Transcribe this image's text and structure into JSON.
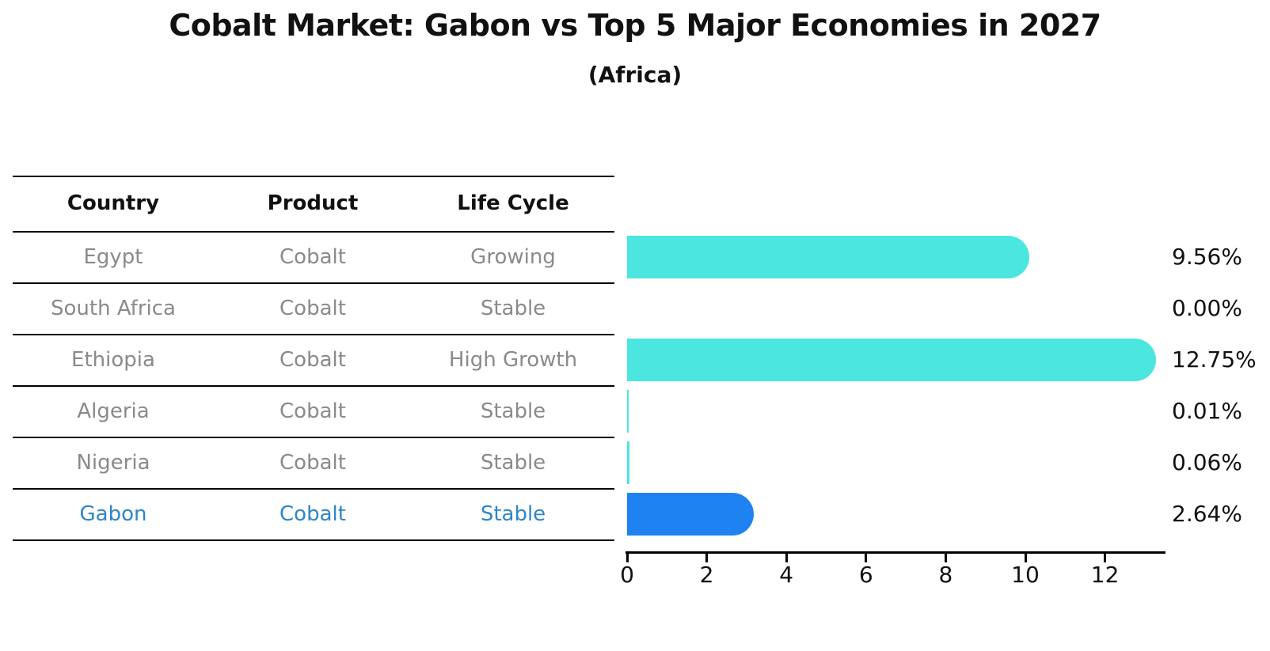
{
  "title": "Cobalt Market: Gabon vs Top 5 Major Economies in 2027",
  "subtitle": "(Africa)",
  "table": {
    "headers": [
      "Country",
      "Product",
      "Life Cycle"
    ],
    "rows": [
      {
        "country": "Egypt",
        "product": "Cobalt",
        "life_cycle": "Growing",
        "highlight": false
      },
      {
        "country": "South Africa",
        "product": "Cobalt",
        "life_cycle": "Stable",
        "highlight": false
      },
      {
        "country": "Ethiopia",
        "product": "Cobalt",
        "life_cycle": "High Growth",
        "highlight": false
      },
      {
        "country": "Algeria",
        "product": "Cobalt",
        "life_cycle": "Stable",
        "highlight": false
      },
      {
        "country": "Nigeria",
        "product": "Cobalt",
        "life_cycle": "Stable",
        "highlight": false
      },
      {
        "country": "Gabon",
        "product": "Cobalt",
        "life_cycle": "Stable",
        "highlight": true
      }
    ]
  },
  "chart_data": {
    "type": "bar",
    "orientation": "horizontal",
    "categories": [
      "Egypt",
      "South Africa",
      "Ethiopia",
      "Algeria",
      "Nigeria",
      "Gabon"
    ],
    "values": [
      9.56,
      0.0,
      12.75,
      0.01,
      0.06,
      2.64
    ],
    "value_labels": [
      "9.56%",
      "0.00%",
      "12.75%",
      "0.01%",
      "0.06%",
      "2.64%"
    ],
    "x_ticks": [
      0,
      2,
      4,
      6,
      8,
      10,
      12
    ],
    "xlim": [
      0,
      13.5
    ],
    "grid": false,
    "legend": null,
    "bar_color": "#4be6df",
    "highlight_index": 5,
    "highlight_bar_color": "#1e82f0",
    "highlight_text_color": "#2e86c8",
    "axis_color": "#000000",
    "label_color": "#111111",
    "table_text_color": "#8a8a8a"
  }
}
